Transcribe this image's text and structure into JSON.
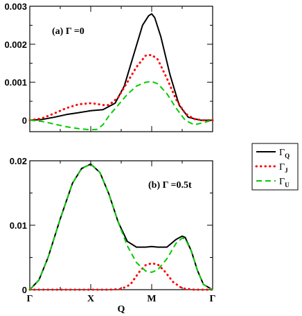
{
  "chart_data": [
    {
      "type": "line",
      "annotation": "(a) Γ =0",
      "x_tick_labels": [
        "Γ",
        "X",
        "M",
        "Γ"
      ],
      "x_tick_positions": [
        0,
        1,
        2,
        3
      ],
      "ylim": [
        -0.0003,
        0.003
      ],
      "y_ticks": [
        0,
        0.001,
        0.002,
        0.003
      ],
      "y_tick_labels": [
        "0",
        "0.001",
        "0.002",
        "0.003"
      ],
      "xlabel": "",
      "series": [
        {
          "name": "ΓQ",
          "color": "#000000",
          "style": "solid",
          "x": [
            0,
            0.2,
            0.4,
            0.6,
            0.8,
            1.0,
            1.2,
            1.4,
            1.55,
            1.7,
            1.85,
            1.95,
            2.0,
            2.05,
            2.15,
            2.3,
            2.45,
            2.6,
            2.8,
            3.0
          ],
          "y": [
            0,
            2e-05,
            8e-05,
            0.00015,
            0.0002,
            0.00025,
            0.00028,
            0.00045,
            0.0009,
            0.0017,
            0.0025,
            0.00275,
            0.0028,
            0.0027,
            0.0022,
            0.0012,
            0.0004,
            8e-05,
            0,
            0
          ]
        },
        {
          "name": "ΓJ",
          "color": "#ff0000",
          "style": "dotted",
          "x": [
            0,
            0.2,
            0.4,
            0.6,
            0.8,
            1.0,
            1.1,
            1.2,
            1.3,
            1.45,
            1.6,
            1.75,
            1.9,
            2.0,
            2.1,
            2.25,
            2.4,
            2.55,
            2.7,
            2.85,
            3.0
          ],
          "y": [
            0,
            5e-05,
            0.00018,
            0.00032,
            0.00042,
            0.00045,
            0.00043,
            0.0004,
            0.0004,
            0.0006,
            0.001,
            0.0014,
            0.0017,
            0.00172,
            0.0016,
            0.0011,
            0.00055,
            0.00018,
            3e-05,
            0,
            0
          ]
        },
        {
          "name": "ΓU",
          "color": "#00cc00",
          "style": "dashed",
          "x": [
            0,
            0.2,
            0.4,
            0.6,
            0.8,
            1.0,
            1.1,
            1.2,
            1.3,
            1.45,
            1.6,
            1.75,
            1.9,
            2.0,
            2.1,
            2.25,
            2.4,
            2.55,
            2.7,
            2.85,
            3.0
          ],
          "y": [
            0,
            -3e-05,
            -0.0001,
            -0.00017,
            -0.00022,
            -0.00025,
            -0.00024,
            -0.00012,
            0.00012,
            0.0004,
            0.00068,
            0.0009,
            0.001,
            0.00102,
            0.00096,
            0.0007,
            0.00032,
            0,
            -0.00012,
            -6e-05,
            0
          ]
        }
      ]
    },
    {
      "type": "line",
      "annotation": "(b) Γ =0.5t",
      "x_tick_labels": [
        "Γ",
        "X",
        "M",
        "Γ"
      ],
      "x_tick_positions": [
        0,
        1,
        2,
        3
      ],
      "xlabel": "Q",
      "ylim": [
        0,
        0.02
      ],
      "y_ticks": [
        0,
        0.01,
        0.02
      ],
      "y_tick_labels": [
        "0",
        "0.01",
        "0.02"
      ],
      "series": [
        {
          "name": "ΓQ",
          "color": "#000000",
          "style": "solid",
          "x": [
            0,
            0.15,
            0.3,
            0.5,
            0.7,
            0.85,
            1.0,
            1.15,
            1.3,
            1.45,
            1.6,
            1.75,
            1.9,
            2.0,
            2.1,
            2.25,
            2.4,
            2.5,
            2.55,
            2.65,
            2.75,
            2.85,
            3.0
          ],
          "y": [
            0,
            0.0015,
            0.005,
            0.011,
            0.0165,
            0.0188,
            0.0195,
            0.0182,
            0.0148,
            0.0105,
            0.0075,
            0.0066,
            0.0066,
            0.0067,
            0.0066,
            0.0066,
            0.0078,
            0.0083,
            0.0081,
            0.006,
            0.003,
            0.0008,
            0
          ]
        },
        {
          "name": "ΓJ",
          "color": "#ff0000",
          "style": "dotted",
          "x": [
            0,
            0.5,
            1.0,
            1.3,
            1.5,
            1.65,
            1.8,
            1.9,
            2.0,
            2.1,
            2.2,
            2.35,
            2.5,
            2.7,
            3.0
          ],
          "y": [
            0,
            0,
            0,
            0,
            0.0001,
            0.0008,
            0.0028,
            0.0038,
            0.0041,
            0.0039,
            0.003,
            0.0012,
            0.0002,
            0,
            0
          ]
        },
        {
          "name": "ΓU",
          "color": "#00cc00",
          "style": "dashed",
          "x": [
            0,
            0.15,
            0.3,
            0.5,
            0.7,
            0.85,
            1.0,
            1.15,
            1.3,
            1.45,
            1.6,
            1.75,
            1.9,
            2.0,
            2.1,
            2.25,
            2.4,
            2.5,
            2.55,
            2.65,
            2.75,
            2.85,
            3.0
          ],
          "y": [
            0,
            0.0015,
            0.005,
            0.011,
            0.0165,
            0.0188,
            0.0195,
            0.0182,
            0.0148,
            0.0105,
            0.0068,
            0.0042,
            0.0029,
            0.0027,
            0.0031,
            0.0048,
            0.0072,
            0.008,
            0.0079,
            0.006,
            0.003,
            0.0008,
            0
          ]
        }
      ]
    }
  ],
  "legend": {
    "entries": [
      {
        "symbol": "Γ",
        "sub": "Q",
        "color": "#000000",
        "style": "solid"
      },
      {
        "symbol": "Γ",
        "sub": "J",
        "color": "#ff0000",
        "style": "dotted"
      },
      {
        "symbol": "Γ",
        "sub": "U",
        "color": "#00cc00",
        "style": "dashed"
      }
    ]
  }
}
